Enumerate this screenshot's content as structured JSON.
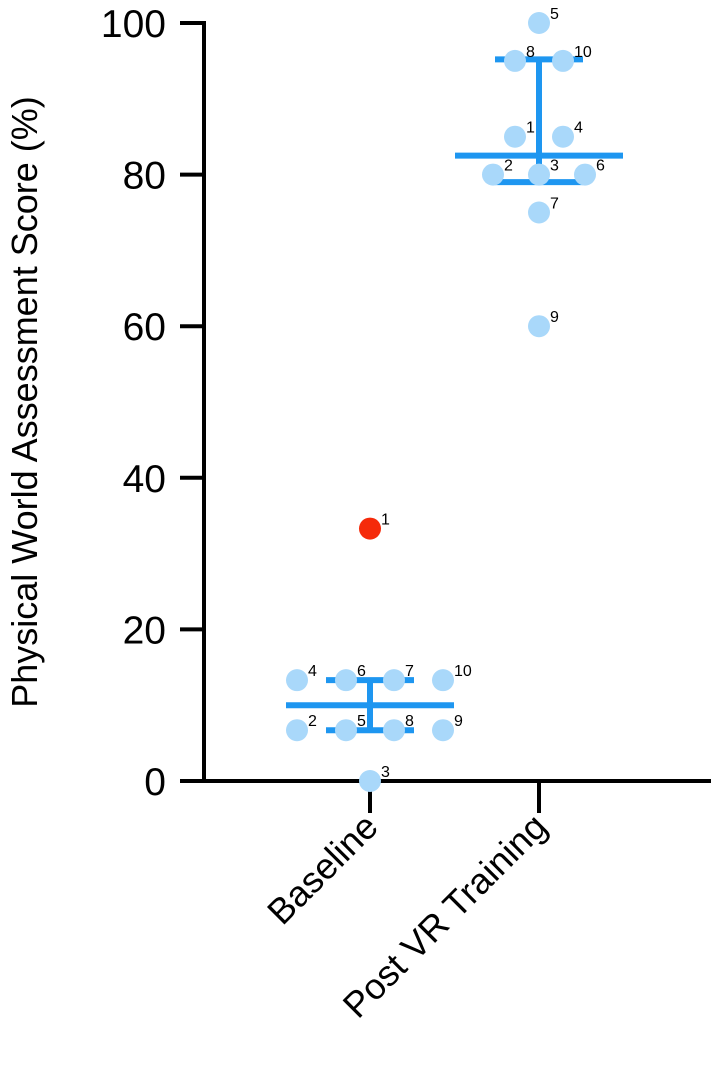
{
  "chart_data": {
    "type": "scatter",
    "title": "",
    "ylabel": "Physical World Assessment Score (%)",
    "xlabel": "",
    "ylim": [
      0,
      100
    ],
    "yticks": [
      0,
      20,
      40,
      60,
      80,
      100
    ],
    "categories": [
      "Baseline",
      "Post VR Training"
    ],
    "grid": false,
    "legend": "none",
    "colors": {
      "point": "#a9d8fa",
      "summary": "#1e96f0",
      "outlier": "#f52a0a",
      "axis": "#000000"
    },
    "groups": [
      {
        "category": "Baseline",
        "mean": 10.0,
        "error_low": 6.7,
        "error_high": 13.3,
        "points": [
          {
            "label": "1",
            "y": 33.3,
            "outlier": true
          },
          {
            "label": "2",
            "y": 6.7
          },
          {
            "label": "3",
            "y": 0
          },
          {
            "label": "4",
            "y": 13.3
          },
          {
            "label": "5",
            "y": 6.7
          },
          {
            "label": "6",
            "y": 13.3
          },
          {
            "label": "7",
            "y": 13.3
          },
          {
            "label": "8",
            "y": 6.7
          },
          {
            "label": "9",
            "y": 6.7
          },
          {
            "label": "10",
            "y": 13.3
          }
        ]
      },
      {
        "category": "Post VR Training",
        "mean": 82.5,
        "error_low": 79,
        "error_high": 95.2,
        "points": [
          {
            "label": "1",
            "y": 85
          },
          {
            "label": "2",
            "y": 80
          },
          {
            "label": "3",
            "y": 80
          },
          {
            "label": "4",
            "y": 85
          },
          {
            "label": "5",
            "y": 100
          },
          {
            "label": "6",
            "y": 80
          },
          {
            "label": "7",
            "y": 75
          },
          {
            "label": "8",
            "y": 95
          },
          {
            "label": "9",
            "y": 60
          },
          {
            "label": "10",
            "y": 95
          }
        ]
      }
    ]
  }
}
